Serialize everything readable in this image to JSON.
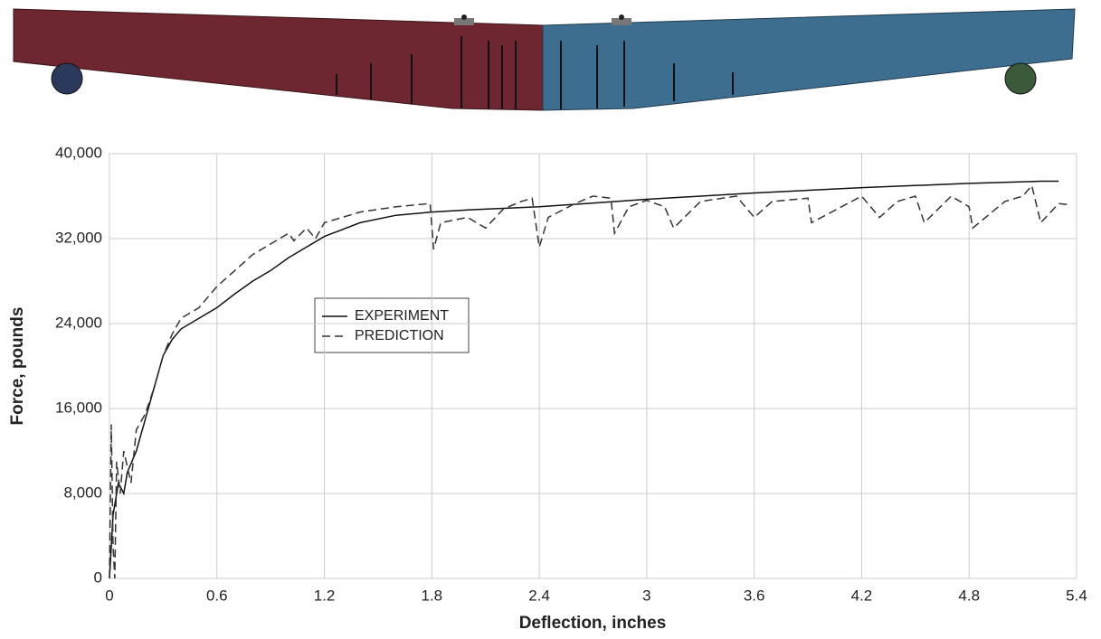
{
  "chart_data": {
    "type": "line",
    "x_label": "Deflection, inches",
    "y_label": "Force, pounds",
    "xlim": [
      0,
      5.4
    ],
    "xticks": [
      0,
      0.6,
      1.2,
      1.8,
      2.4,
      3,
      3.6,
      4.2,
      4.8,
      5.4
    ],
    "ylim": [
      0,
      40000
    ],
    "yticks": [
      0,
      {
        "value": 8000,
        "label": "8,000"
      },
      {
        "value": 16000,
        "label": "16,000"
      },
      {
        "value": 24000,
        "label": "24,000"
      },
      {
        "value": 32000,
        "label": "32,000"
      },
      {
        "value": 40000,
        "label": "40,000"
      }
    ],
    "grid": true,
    "series": [
      {
        "name": "EXPERIMENT",
        "color": "#111111",
        "dashed": false,
        "x": [
          0,
          0.02,
          0.05,
          0.08,
          0.1,
          0.15,
          0.2,
          0.25,
          0.3,
          0.35,
          0.4,
          0.5,
          0.6,
          0.7,
          0.8,
          0.9,
          1.0,
          1.1,
          1.2,
          1.4,
          1.6,
          1.8,
          2.0,
          2.4,
          3.0,
          3.6,
          4.2,
          4.8,
          5.2,
          5.3
        ],
        "values": [
          0,
          6000,
          9000,
          8000,
          10000,
          12000,
          15000,
          18000,
          21000,
          22500,
          23500,
          24500,
          25500,
          26800,
          28000,
          29000,
          30200,
          31200,
          32200,
          33500,
          34200,
          34500,
          34700,
          35000,
          35700,
          36300,
          36800,
          37200,
          37400,
          37400
        ]
      },
      {
        "name": "PREDICTION",
        "color": "#333333",
        "dashed": true,
        "x": [
          0,
          0.01,
          0.02,
          0.03,
          0.04,
          0.06,
          0.08,
          0.12,
          0.15,
          0.2,
          0.25,
          0.3,
          0.35,
          0.4,
          0.5,
          0.6,
          0.7,
          0.8,
          0.9,
          1.0,
          1.03,
          1.1,
          1.15,
          1.2,
          1.4,
          1.6,
          1.79,
          1.81,
          1.85,
          2.0,
          2.1,
          2.2,
          2.3,
          2.36,
          2.4,
          2.45,
          2.6,
          2.7,
          2.8,
          2.82,
          2.9,
          3.0,
          3.1,
          3.15,
          3.3,
          3.5,
          3.6,
          3.7,
          3.9,
          3.92,
          4.2,
          4.3,
          4.4,
          4.5,
          4.55,
          4.7,
          4.8,
          4.82,
          5.0,
          5.1,
          5.15,
          5.2,
          5.3,
          5.35
        ],
        "values": [
          0,
          14500,
          3000,
          0,
          11000,
          8000,
          12000,
          9000,
          14000,
          15500,
          18000,
          21000,
          23000,
          24500,
          25500,
          27500,
          29000,
          30500,
          31500,
          32500,
          31800,
          33000,
          32000,
          33500,
          34500,
          35000,
          35300,
          31000,
          33500,
          34000,
          33000,
          34800,
          35500,
          35800,
          31200,
          34000,
          35300,
          36000,
          35800,
          32500,
          35000,
          35600,
          35000,
          33000,
          35500,
          36000,
          34000,
          35500,
          35800,
          33500,
          36000,
          34000,
          35500,
          36000,
          33500,
          36000,
          35000,
          33000,
          35500,
          36000,
          37000,
          33500,
          35300,
          35200
        ]
      }
    ]
  }
}
